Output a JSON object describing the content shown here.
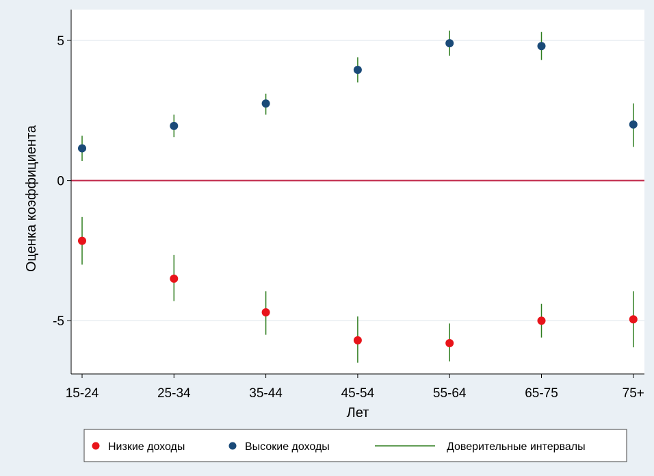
{
  "chart_data": {
    "type": "scatter",
    "title": "",
    "xlabel": "Лет",
    "ylabel": "Оценка коэффициента",
    "categories": [
      "15-24",
      "25-34",
      "35-44",
      "45-54",
      "55-64",
      "65-75",
      "75+"
    ],
    "ylim": [
      -6.9,
      6.1
    ],
    "yticks": [
      5,
      0,
      -5
    ],
    "ytick_labels": [
      "5",
      "0",
      "-5"
    ],
    "grid": true,
    "reference_line": {
      "y": 0,
      "color": "#c0284a"
    },
    "series": [
      {
        "name": "Низкие доходы",
        "color": "#e8141a",
        "values": [
          -2.15,
          -3.5,
          -4.7,
          -5.7,
          -5.8,
          -5.0,
          -4.95
        ],
        "ci_low": [
          -3.0,
          -4.3,
          -5.5,
          -6.5,
          -6.45,
          -5.6,
          -5.95
        ],
        "ci_high": [
          -1.3,
          -2.65,
          -3.95,
          -4.85,
          -5.1,
          -4.4,
          -3.95
        ]
      },
      {
        "name": "Высокие доходы",
        "color": "#1a4a78",
        "values": [
          1.15,
          1.95,
          2.75,
          3.95,
          4.9,
          4.8,
          2.0
        ],
        "ci_low": [
          0.7,
          1.55,
          2.35,
          3.5,
          4.45,
          4.3,
          1.2
        ],
        "ci_high": [
          1.6,
          2.35,
          3.1,
          4.4,
          5.35,
          5.3,
          2.75
        ]
      }
    ],
    "ci_name": "Доверительные интервалы",
    "ci_color": "#2e7d1e",
    "legend": {
      "position": "bottom",
      "entries": [
        "Низкие доходы",
        "Высокие доходы",
        "Доверительные интервалы"
      ]
    },
    "colors": {
      "outer_background": "#eaf0f5",
      "plot_background": "#ffffff",
      "grid": "#e8eef2"
    }
  }
}
